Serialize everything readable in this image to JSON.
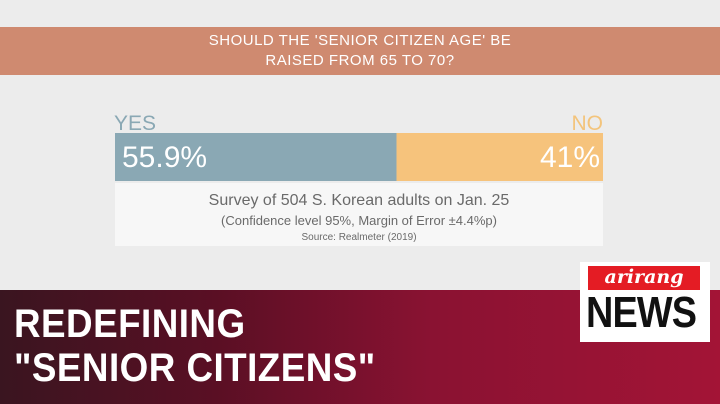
{
  "question": {
    "line1": "SHOULD THE 'SENIOR CITIZEN AGE' BE",
    "line2": "RAISED FROM 65 TO 70?"
  },
  "chart_data": {
    "type": "bar",
    "orientation": "horizontal-stacked",
    "title": "SHOULD THE 'SENIOR CITIZEN AGE' BE RAISED FROM 65 TO 70?",
    "categories": [
      "YES",
      "NO"
    ],
    "values": [
      55.9,
      41
    ],
    "value_labels": [
      "55.9%",
      "41%"
    ],
    "colors": [
      "#8aa8b4",
      "#f6c37c"
    ]
  },
  "survey": {
    "line1": "Survey of 504 S. Korean adults on Jan. 25",
    "line2": "(Confidence level 95%, Margin of Error ±4.4%p)",
    "source": "Source: Realmeter (2019)"
  },
  "headline": {
    "line1": "REDEFINING",
    "line2": "\"SENIOR CITIZENS\""
  },
  "logo": {
    "top": "arirang",
    "bottom": "NEWS"
  }
}
